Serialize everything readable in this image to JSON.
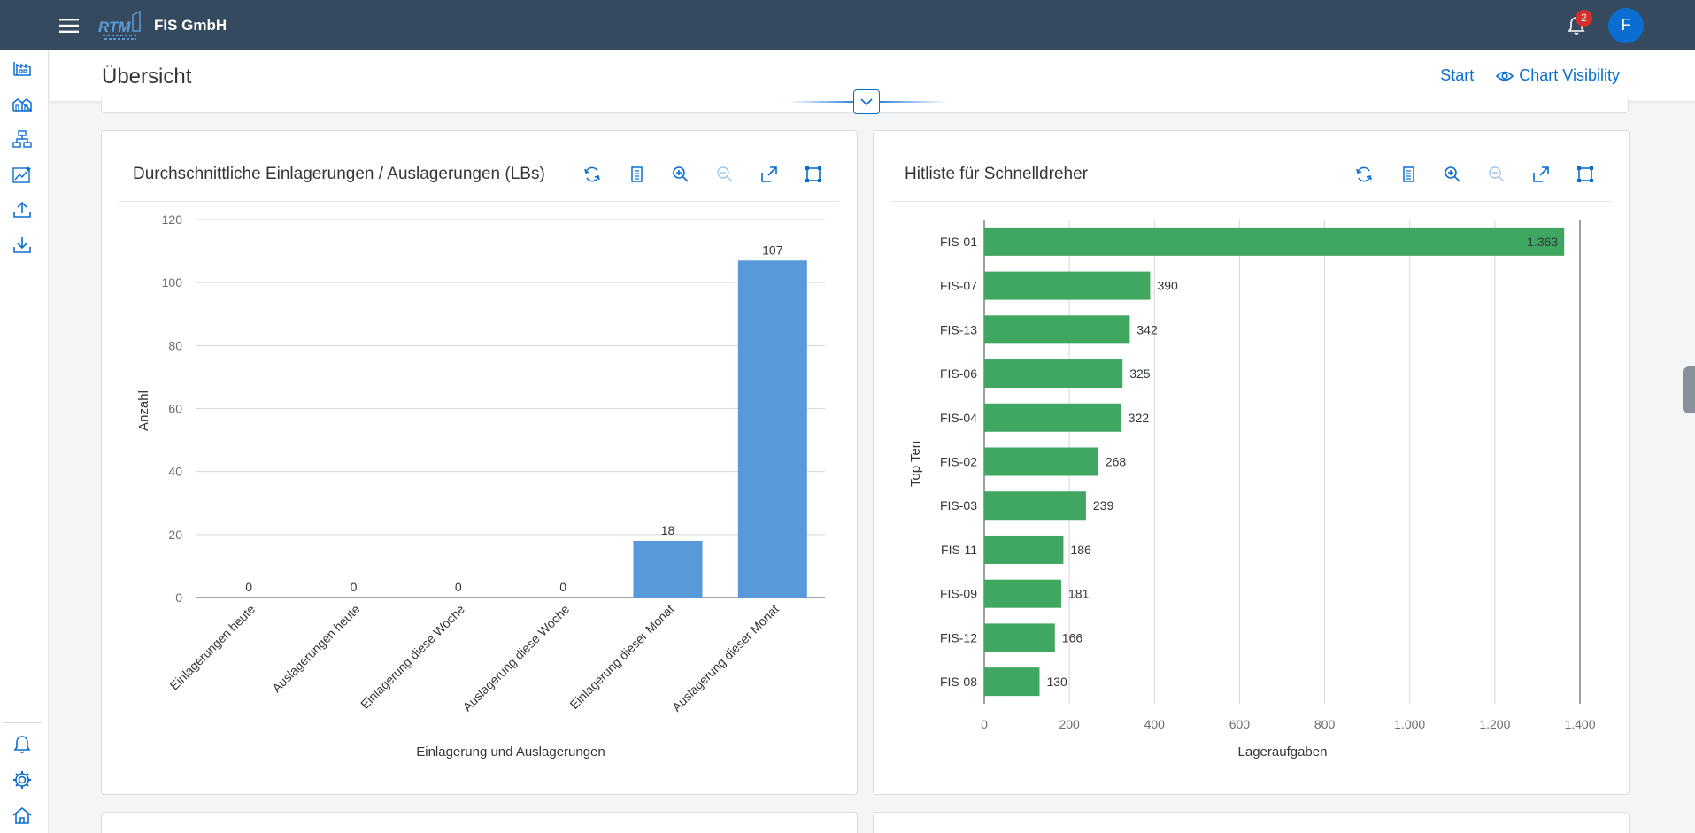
{
  "shell": {
    "brand": "FIS GmbH",
    "logo_text": "RTM",
    "notification_count": "2",
    "avatar_initial": "F"
  },
  "page": {
    "title": "Übersicht",
    "start_label": "Start",
    "chart_visibility_label": "Chart Visibility"
  },
  "colors": {
    "shell": "#354a5f",
    "accent": "#0a6ed1",
    "bar_blue": "#5899da",
    "bar_green": "#3fa75f"
  },
  "nav": {
    "top_icons": [
      "warehouse-icon",
      "buildings-icon",
      "hierarchy-icon",
      "line-chart-icon",
      "upload-icon",
      "download-icon"
    ],
    "bottom_icons": [
      "bell-icon",
      "gear-icon",
      "home-icon"
    ]
  },
  "toolbar_icons": [
    "refresh-icon",
    "table-view-icon",
    "zoom-in-icon",
    "zoom-out-icon",
    "fullscreen-icon",
    "fit-icon"
  ],
  "chart_data": [
    {
      "type": "bar",
      "title": "Durchschnittliche Einlagerungen / Auslagerungen (LBs)",
      "xlabel": "Einlagerung und Auslagerungen",
      "ylabel": "Anzahl",
      "categories": [
        "Einlagerungen heute",
        "Auslagerungen heute",
        "Einlagerung diese Woche",
        "Auslagerung diese Woche",
        "Einlagerung dieser Monat",
        "Auslagerung dieser Monat"
      ],
      "values": [
        0,
        0,
        0,
        0,
        18,
        107
      ],
      "value_labels": [
        "0",
        "0",
        "0",
        "0",
        "18",
        "107"
      ],
      "ylim": [
        0,
        120
      ],
      "yticks": [
        0,
        20,
        40,
        60,
        80,
        100,
        120
      ],
      "ytick_labels": [
        "0",
        "20",
        "40",
        "60",
        "80",
        "100",
        "120"
      ],
      "grid": true
    },
    {
      "type": "bar",
      "orientation": "horizontal",
      "title": "Hitliste für Schnelldreher",
      "xlabel": "Lageraufgaben",
      "ylabel": "Top Ten",
      "categories": [
        "FIS-01",
        "FIS-07",
        "FIS-13",
        "FIS-06",
        "FIS-04",
        "FIS-02",
        "FIS-03",
        "FIS-11",
        "FIS-09",
        "FIS-12",
        "FIS-08"
      ],
      "values": [
        1363,
        390,
        342,
        325,
        322,
        268,
        239,
        186,
        181,
        166,
        130
      ],
      "value_labels": [
        "1.363",
        "390",
        "342",
        "325",
        "322",
        "268",
        "239",
        "186",
        "181",
        "166",
        "130"
      ],
      "xlim": [
        0,
        1400
      ],
      "xticks": [
        0,
        200,
        400,
        600,
        800,
        1000,
        1200,
        1400
      ],
      "xtick_labels": [
        "0",
        "200",
        "400",
        "600",
        "800",
        "1.000",
        "1.200",
        "1.400"
      ],
      "grid": true
    }
  ]
}
